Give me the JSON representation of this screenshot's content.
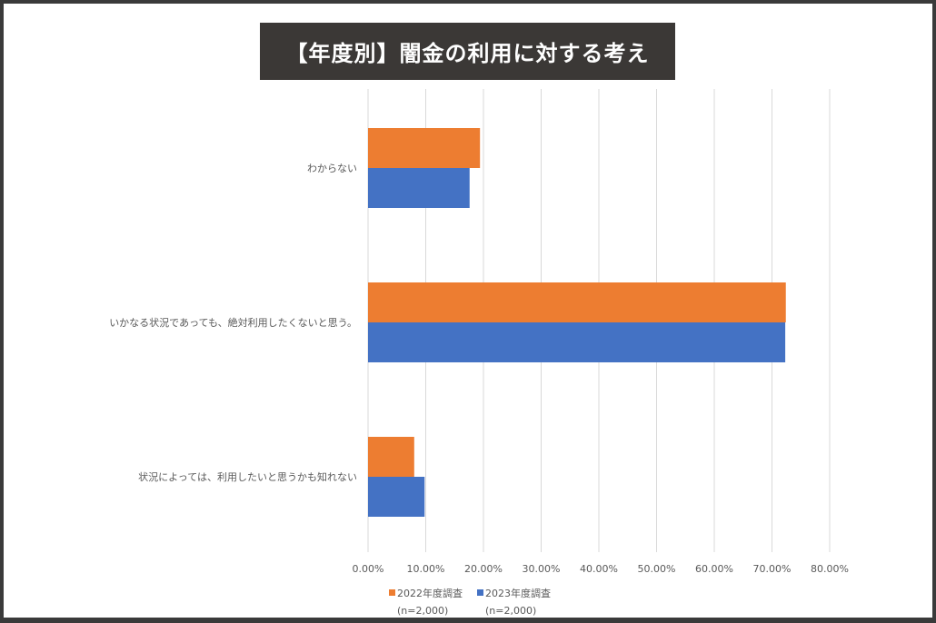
{
  "chart_data": {
    "type": "bar",
    "orientation": "horizontal",
    "title": "【年度別】闇金の利用に対する考え",
    "categories": [
      "わからない",
      "いかなる状況であっても、絶対利用したくないと思う。",
      "状況によっては、利用したいと思うかも知れない"
    ],
    "series": [
      {
        "name": "2022年度調査",
        "note": "(n=2,000)",
        "color": "#ED7D31",
        "values": [
          19.4,
          72.4,
          8.0
        ]
      },
      {
        "name": "2023年度調査",
        "note": "(n=2,000)",
        "color": "#4472C4",
        "values": [
          17.6,
          72.3,
          9.8
        ]
      }
    ],
    "xlim": [
      0,
      80
    ],
    "ticks": [
      "0.00%",
      "10.00%",
      "20.00%",
      "30.00%",
      "40.00%",
      "50.00%",
      "60.00%",
      "70.00%",
      "80.00%"
    ],
    "grid": true,
    "legend": "bottom"
  }
}
